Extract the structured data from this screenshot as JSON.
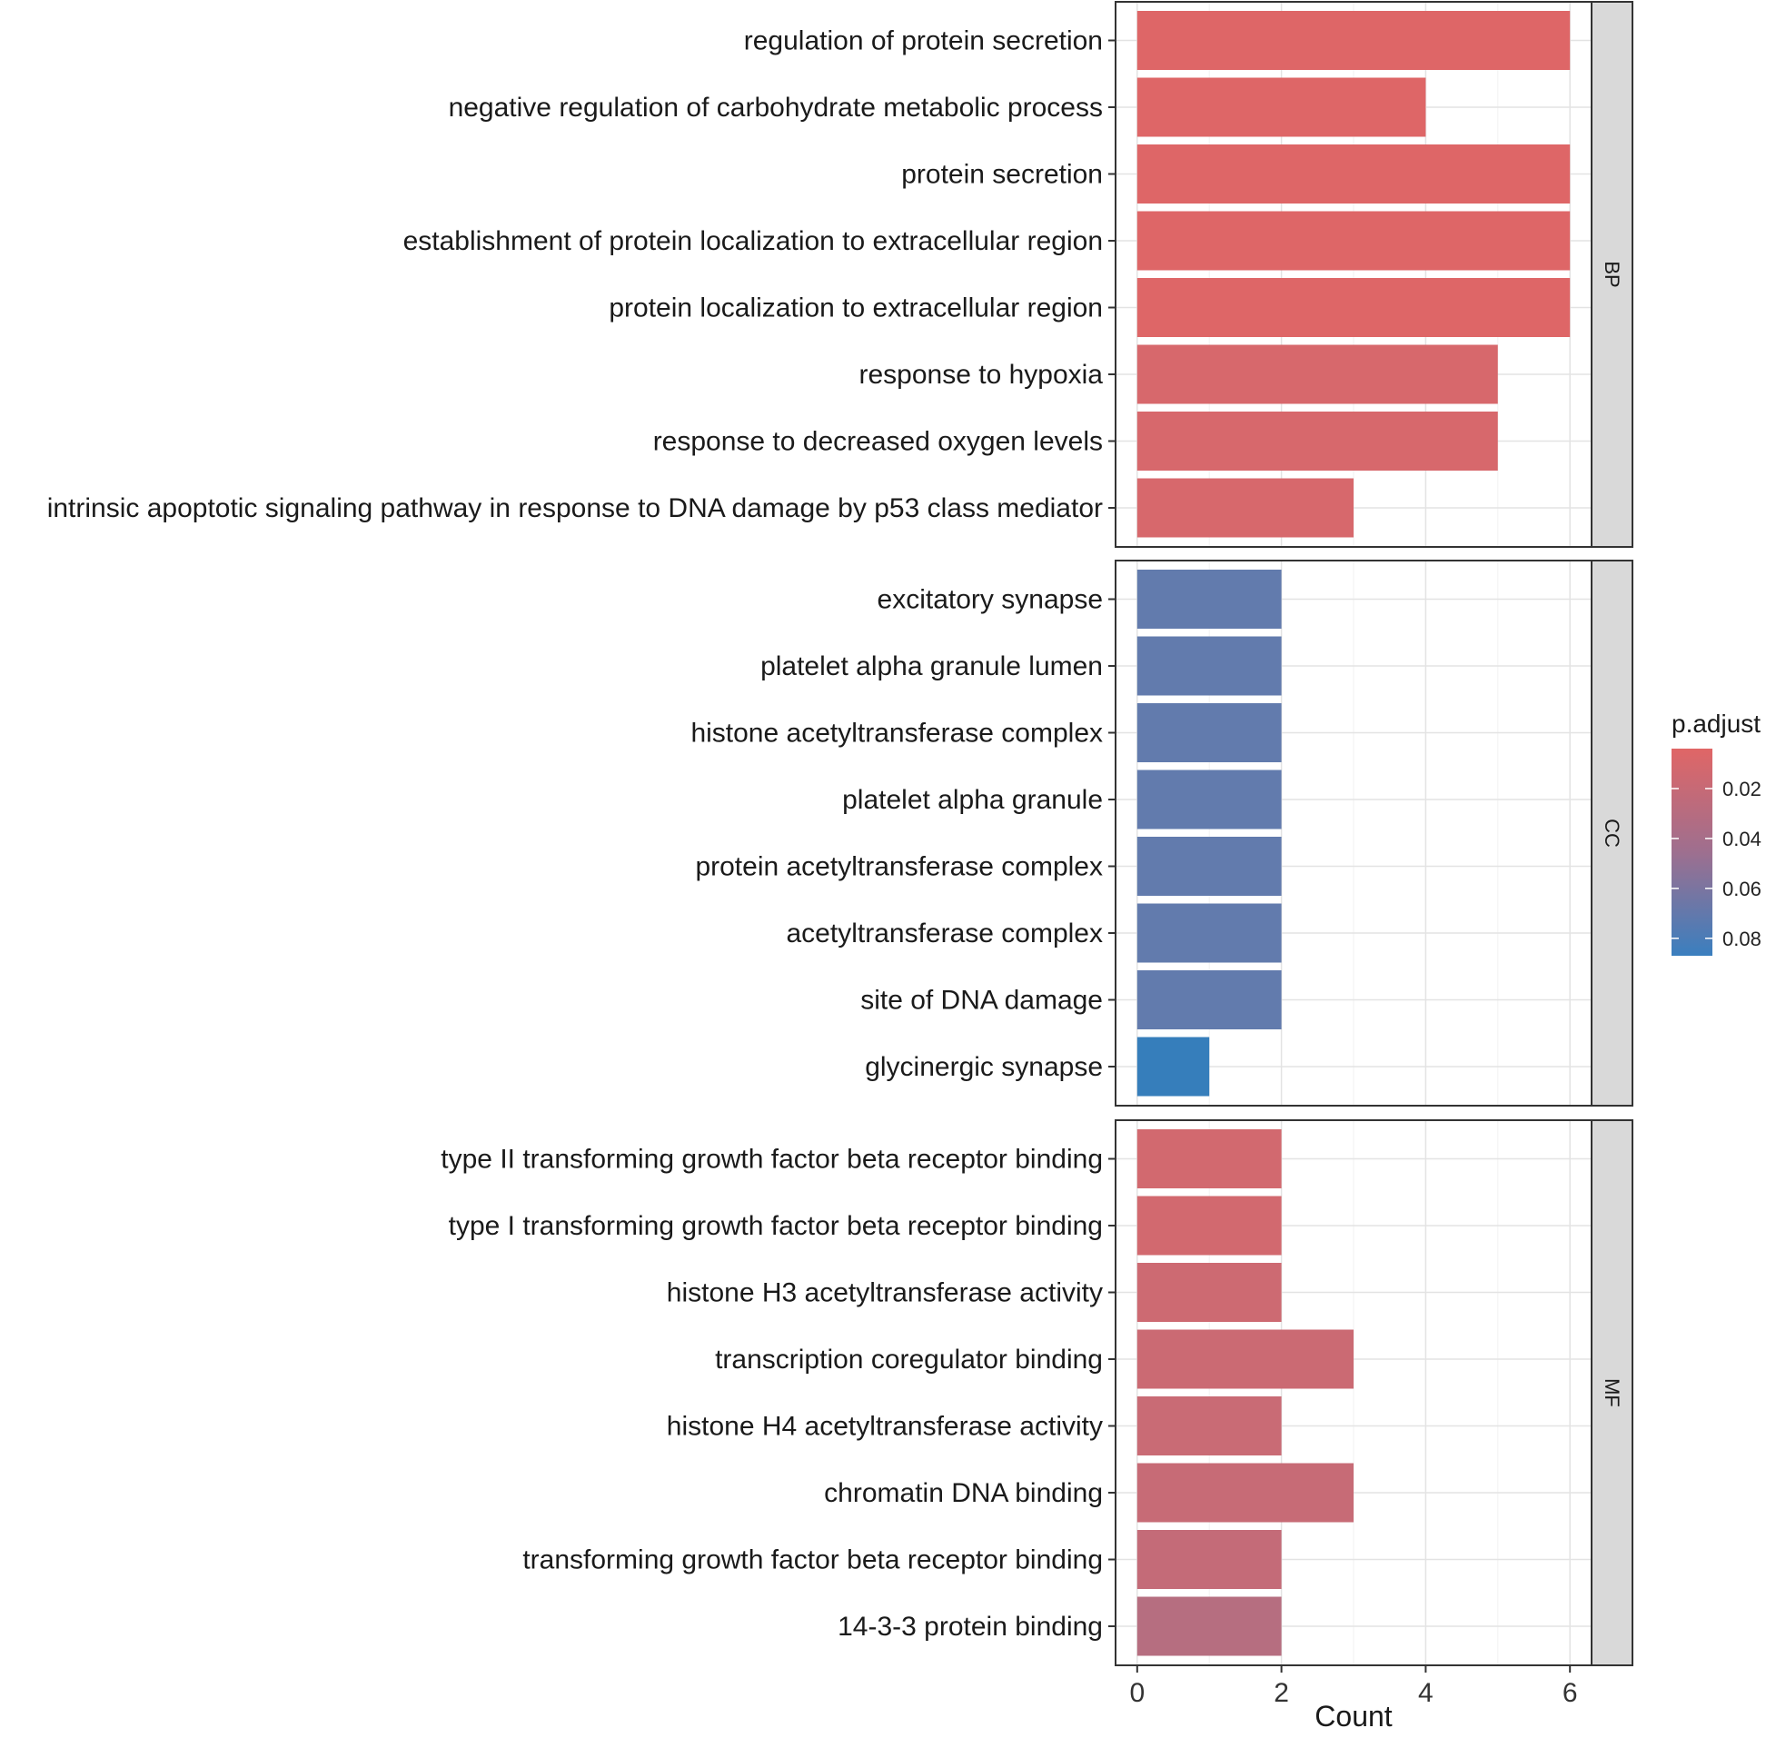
{
  "chart_data": {
    "type": "bar",
    "orientation": "horizontal",
    "xlabel": "Count",
    "ylabel": "",
    "xlim": [
      -0.3,
      6.3
    ],
    "xticks": [
      0,
      2,
      4,
      6
    ],
    "grid": true,
    "legend": {
      "title": "p.adjust",
      "position": "right",
      "min": 0.004,
      "max": 0.087,
      "ticks": [
        0.02,
        0.04,
        0.06,
        0.08
      ],
      "ticks_text": [
        "0.02",
        "0.04",
        "0.06",
        "0.08"
      ],
      "low_color": "#E06666",
      "high_color": "#3A7FBF"
    },
    "facets": [
      {
        "name": "BP",
        "categories": [
          "regulation of protein secretion",
          "negative regulation of carbohydrate metabolic process",
          "protein secretion",
          "establishment of protein localization to extracellular region",
          "protein localization to extracellular region",
          "response to hypoxia",
          "response to decreased oxygen levels",
          "intrinsic apoptotic signaling pathway in response to DNA damage by p53 class mediator"
        ],
        "values": [
          6,
          4,
          6,
          6,
          6,
          5,
          5,
          3
        ],
        "p_adjust": [
          0.005,
          0.005,
          0.005,
          0.005,
          0.005,
          0.008,
          0.008,
          0.008
        ]
      },
      {
        "name": "CC",
        "categories": [
          "excitatory synapse",
          "platelet alpha granule lumen",
          "histone acetyltransferase complex",
          "platelet alpha granule",
          "protein acetyltransferase complex",
          "acetyltransferase complex",
          "site of DNA damage",
          "glycinergic synapse"
        ],
        "values": [
          2,
          2,
          2,
          2,
          2,
          2,
          2,
          1
        ],
        "p_adjust": [
          0.062,
          0.062,
          0.062,
          0.062,
          0.062,
          0.062,
          0.062,
          0.086
        ]
      },
      {
        "name": "MF",
        "categories": [
          "type II transforming growth factor beta receptor binding",
          "type I transforming growth factor beta receptor binding",
          "histone H3 acetyltransferase activity",
          "transcription coregulator binding",
          "histone H4 acetyltransferase activity",
          "chromatin DNA binding",
          "transforming growth factor beta receptor binding",
          "14-3-3 protein binding"
        ],
        "values": [
          2,
          2,
          2,
          3,
          2,
          3,
          2,
          2
        ],
        "p_adjust": [
          0.01,
          0.01,
          0.012,
          0.013,
          0.014,
          0.015,
          0.016,
          0.022
        ]
      }
    ]
  }
}
